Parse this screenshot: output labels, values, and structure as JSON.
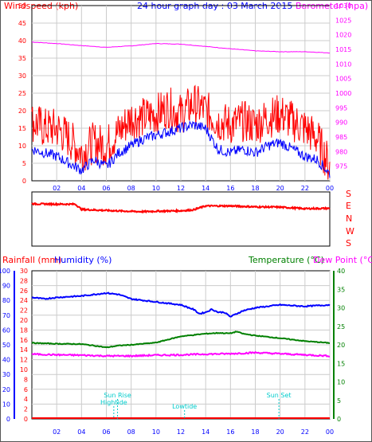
{
  "header": {
    "windspeed_label": "Windspeed (kph)",
    "title": "24 hour graph day : 03 March 2015",
    "barometer_label": "Barometer (hpa)"
  },
  "lower_header": {
    "rainfall_label": "Rainfall (mm)",
    "humidity_label": "Humidity (%)",
    "temperature_label": "Temperature (°C)",
    "dewpoint_label": "Dew Point (°C)"
  },
  "compass": [
    "S",
    "E",
    "N",
    "W",
    "S"
  ],
  "x_ticks": [
    "02",
    "04",
    "06",
    "08",
    "10",
    "12",
    "14",
    "16",
    "18",
    "20",
    "22",
    "00"
  ],
  "colors": {
    "wind": "#ff0000",
    "wind_gust_line": "#0000ff",
    "barometer": "#ff00ff",
    "rainfall": "#ff0000",
    "humidity": "#0000ff",
    "temperature": "#008000",
    "dewpoint": "#ff00ff",
    "annotations": "#00cccc",
    "grid": "#cccccc"
  },
  "chart_data": [
    {
      "type": "line",
      "panel": "wind-barometer",
      "x_hours": [
        0,
        24
      ],
      "y_left": {
        "label": "Windspeed (kph)",
        "ylim": [
          0,
          50
        ],
        "ticks": [
          0,
          5,
          10,
          15,
          20,
          25,
          30,
          35,
          40,
          45,
          50
        ]
      },
      "y_right": {
        "label": "Barometer (hpa)",
        "ylim": [
          970,
          1030
        ],
        "ticks": [
          975,
          980,
          985,
          990,
          995,
          1000,
          1005,
          1010,
          1015,
          1020,
          1025,
          1030
        ]
      },
      "series": [
        {
          "name": "Windspeed",
          "axis": "left",
          "x": [
            0,
            1,
            2,
            3,
            4,
            5,
            6,
            7,
            8,
            9,
            10,
            11,
            12,
            13,
            14,
            15,
            16,
            17,
            18,
            19,
            20,
            21,
            22,
            23,
            24
          ],
          "y": [
            17,
            15,
            15,
            12,
            8,
            11,
            10,
            14,
            18,
            18,
            19,
            21,
            19,
            22,
            20,
            17,
            16,
            17,
            16,
            18,
            19,
            17,
            15,
            12,
            4
          ]
        },
        {
          "name": "Gust",
          "axis": "left",
          "x": [
            0,
            1,
            2,
            3,
            4,
            5,
            6,
            7,
            8,
            9,
            10,
            11,
            12,
            13,
            14,
            15,
            16,
            17,
            18,
            19,
            20,
            21,
            22,
            23,
            24
          ],
          "y": [
            9,
            8,
            7,
            5,
            3,
            6,
            4,
            8,
            10,
            12,
            13,
            14,
            15,
            16,
            15,
            9,
            8,
            9,
            8,
            10,
            11,
            9,
            7,
            6,
            2
          ]
        },
        {
          "name": "Barometer",
          "axis": "right",
          "x": [
            0,
            2,
            4,
            6,
            8,
            10,
            12,
            14,
            16,
            18,
            20,
            22,
            24
          ],
          "y": [
            1017.5,
            1017.0,
            1016.3,
            1015.7,
            1016.2,
            1017.0,
            1016.8,
            1016.0,
            1015.2,
            1014.5,
            1014.2,
            1014.2,
            1013.8
          ]
        }
      ]
    },
    {
      "type": "line",
      "panel": "wind-direction",
      "y_labels": [
        "S",
        "E",
        "N",
        "W",
        "S"
      ],
      "series": [
        {
          "name": "Wind direction",
          "x": [
            0,
            2,
            3.5,
            4,
            6,
            8,
            9,
            10,
            12,
            13,
            14,
            16,
            18,
            20,
            22,
            24
          ],
          "y_deg": [
            302,
            300,
            300,
            265,
            258,
            252,
            250,
            253,
            256,
            262,
            288,
            288,
            282,
            280,
            270,
            272
          ]
        }
      ]
    },
    {
      "type": "line",
      "panel": "humidity-temperature",
      "x_hours": [
        0,
        24
      ],
      "y_left_rain": {
        "label": "Rainfall (mm)",
        "ylim": [
          0,
          100
        ],
        "ticks": [
          0,
          10,
          20,
          30,
          40,
          50,
          60,
          70,
          80,
          90,
          100
        ]
      },
      "y_left_humidity": {
        "label": "Humidity (%)",
        "ylim": [
          0,
          30
        ],
        "ticks": [
          0,
          2,
          4,
          6,
          8,
          10,
          12,
          14,
          16,
          18,
          20,
          22,
          24,
          26,
          28,
          30
        ]
      },
      "y_right": {
        "label": "Temperature (°C)",
        "ylim": [
          0,
          40
        ],
        "ticks": [
          0,
          5,
          10,
          15,
          20,
          25,
          30,
          35,
          40
        ]
      },
      "series": [
        {
          "name": "Humidity",
          "axis": "left_rain",
          "x": [
            0,
            1,
            2,
            4,
            5,
            6,
            7,
            8,
            10,
            12,
            13,
            13.5,
            14,
            14.5,
            15,
            15.5,
            16,
            16.5,
            17,
            18,
            20,
            22,
            24
          ],
          "y": [
            82,
            81,
            82,
            83,
            84,
            85,
            84,
            81,
            79,
            77,
            74,
            71,
            72,
            74,
            72,
            72,
            69,
            71,
            73,
            75,
            77,
            76,
            77
          ]
        },
        {
          "name": "Temperature",
          "axis": "right",
          "x": [
            0,
            2,
            4,
            5,
            6,
            7,
            8,
            10,
            12,
            14,
            15,
            16,
            16.5,
            17,
            18,
            20,
            22,
            24
          ],
          "y": [
            20.5,
            20.3,
            20.2,
            19.8,
            19.3,
            19.8,
            20.0,
            20.6,
            22.3,
            23.0,
            23.2,
            23.1,
            23.6,
            23.0,
            22.5,
            21.8,
            21.0,
            20.5
          ]
        },
        {
          "name": "Dew Point",
          "axis": "right",
          "x": [
            0,
            2,
            4,
            6,
            8,
            10,
            12,
            14,
            16,
            18,
            20,
            22,
            24
          ],
          "y": [
            17.5,
            17.3,
            17.2,
            17.0,
            17.0,
            17.2,
            17.3,
            17.5,
            17.6,
            17.9,
            17.6,
            17.3,
            17.0
          ]
        },
        {
          "name": "Rainfall",
          "axis": "left_rain",
          "x": [
            0,
            24
          ],
          "y": [
            0,
            0
          ]
        }
      ],
      "annotations": [
        {
          "label": "Sun Rise",
          "hour": 6.9
        },
        {
          "label": "Hightide",
          "hour": 6.6
        },
        {
          "label": "Lowtide",
          "hour": 12.3
        },
        {
          "label": "Sun Set",
          "hour": 19.9
        }
      ]
    }
  ]
}
